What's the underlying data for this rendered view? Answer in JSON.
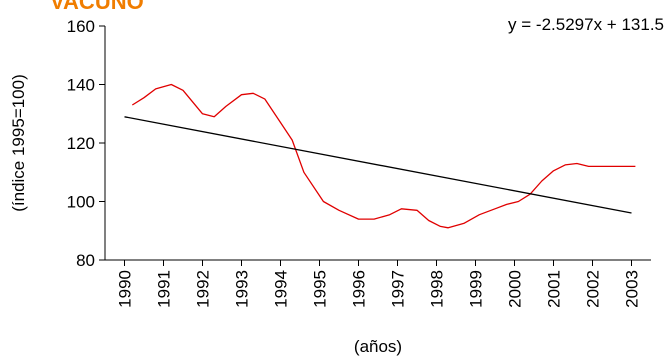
{
  "chart_data": {
    "type": "line",
    "title": "VACUNO",
    "annotation": "y = -2.5297x + 131.5",
    "y_label": "(índice 1995=100)",
    "x_label": "(años)",
    "xlim": [
      1989.5,
      2003.5
    ],
    "xticks": [
      1990,
      1991,
      1992,
      1993,
      1994,
      1995,
      1996,
      1997,
      1998,
      1999,
      2000,
      2001,
      2002,
      2003
    ],
    "ylim": [
      80,
      160
    ],
    "yticks": [
      80,
      100,
      120,
      140,
      160
    ],
    "series": [
      {
        "color": "#e00000",
        "x": [
          1990.2,
          1990.5,
          1990.8,
          1991.2,
          1991.5,
          1992,
          1992.3,
          1992.6,
          1993,
          1993.3,
          1993.6,
          1994,
          1994.3,
          1994.6,
          1995.1,
          1995.5,
          1996,
          1996.4,
          1996.8,
          1997.1,
          1997.5,
          1997.8,
          1998.1,
          1998.3,
          1998.7,
          1999.1,
          1999.5,
          1999.8,
          2000.1,
          2000.4,
          2000.7,
          2001,
          2001.3,
          2001.6,
          2001.9,
          2002.5,
          2003.1
        ],
        "values": [
          133,
          135.5,
          138.5,
          140,
          138,
          130,
          129,
          132.5,
          136.5,
          137,
          135,
          127,
          121,
          110,
          100,
          97,
          94,
          94,
          95.5,
          97.5,
          97,
          93.5,
          91.5,
          91,
          92.5,
          95.5,
          97.5,
          99,
          100,
          102.5,
          107,
          110.5,
          112.5,
          113,
          112,
          112,
          112
        ]
      },
      {
        "color": "#000000",
        "x": [
          1990,
          2003
        ],
        "values": [
          128.97,
          96.08
        ]
      }
    ]
  }
}
